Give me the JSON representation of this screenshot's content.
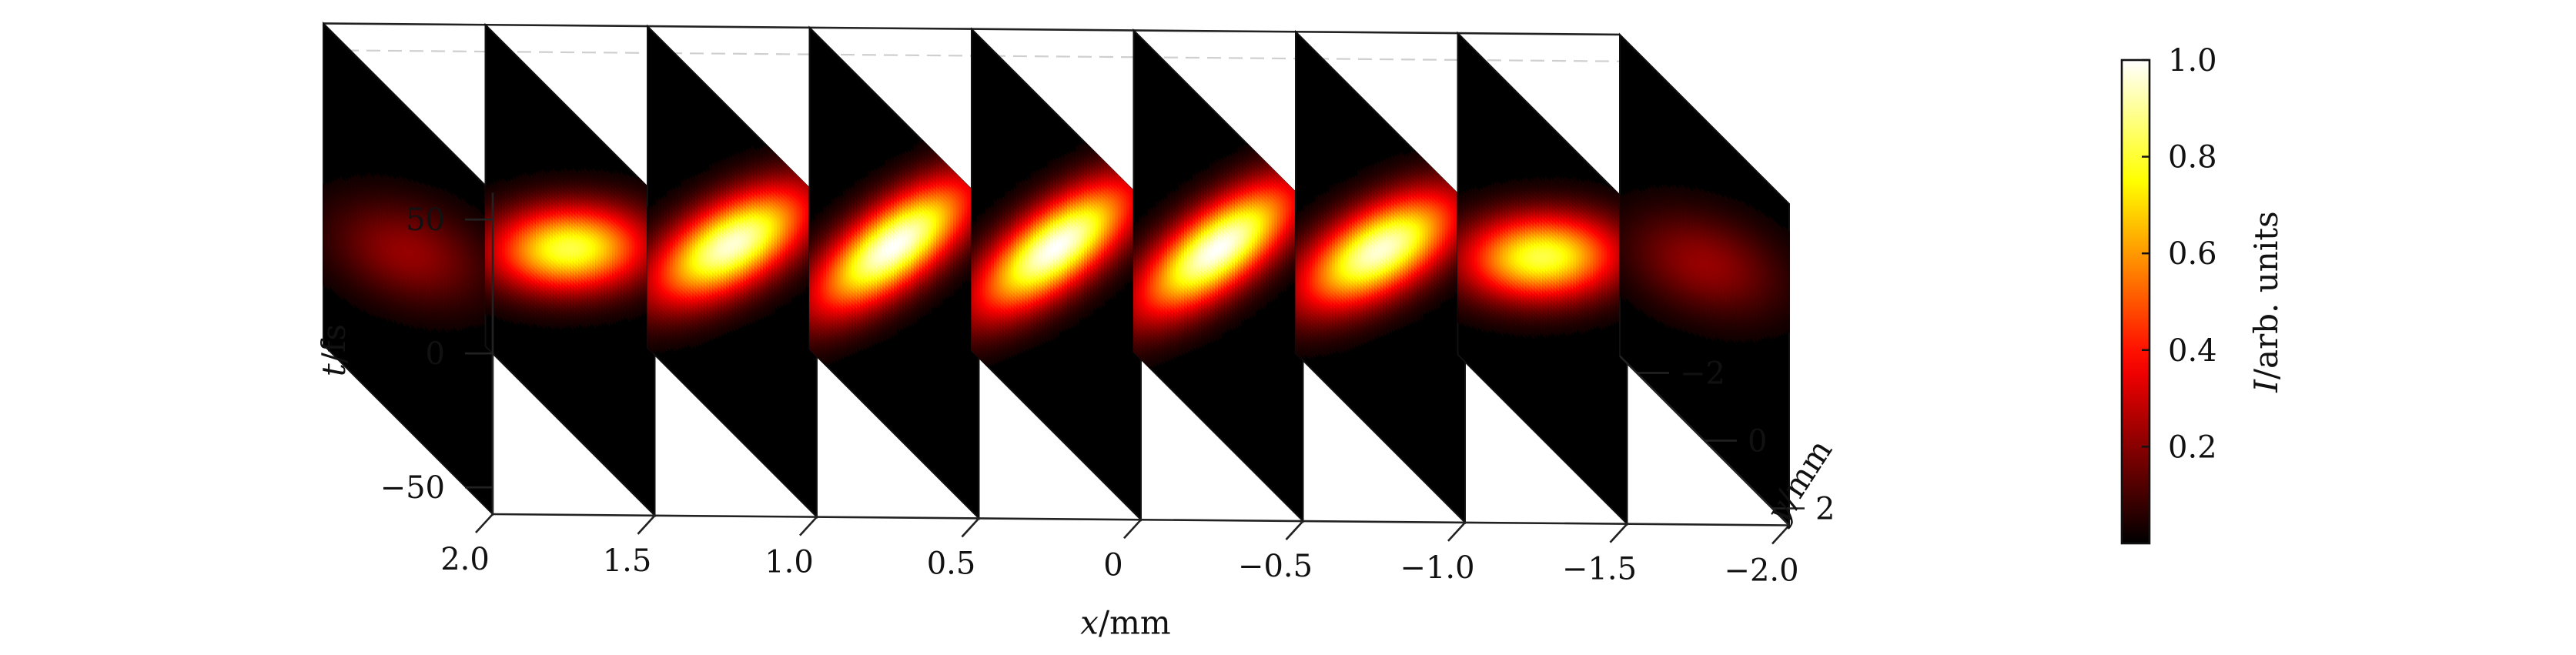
{
  "chart_data": {
    "type": "heatmap",
    "title": "",
    "xlabel_var": "x",
    "xlabel_unit": "/mm",
    "ylabel_var": "y",
    "ylabel_unit": "/mm",
    "tlabel_var": "t",
    "tlabel_unit": "/fs",
    "x_ticks": [
      "2.0",
      "1.5",
      "1.0",
      "0.5",
      "0",
      "−0.5",
      "−1.0",
      "−1.5",
      "−2.0"
    ],
    "x_values": [
      2.0,
      1.5,
      1.0,
      0.5,
      0.0,
      -0.5,
      -1.0,
      -1.5,
      -2.0
    ],
    "y_ticks": [
      "−2",
      "0",
      "2"
    ],
    "y_values": [
      -2,
      0,
      2
    ],
    "t_ticks": [
      "50",
      "0",
      "−50"
    ],
    "t_values": [
      50,
      0,
      -50
    ],
    "xlim": [
      2.0,
      -2.0
    ],
    "ylim": [
      -2.5,
      2.5
    ],
    "tlim": [
      -60,
      60
    ],
    "slices": [
      {
        "x": 2.0,
        "peak": 0.22,
        "t_center": 6,
        "t_width": 13,
        "slope": 10,
        "y_width": 0.35
      },
      {
        "x": 1.5,
        "peak": 0.82,
        "t_center": 8,
        "t_width": 11,
        "slope": 13,
        "y_width": 0.4
      },
      {
        "x": 1.0,
        "peak": 0.96,
        "t_center": 10,
        "t_width": 12,
        "slope": 18,
        "y_width": 0.5
      },
      {
        "x": 0.5,
        "peak": 1.0,
        "t_center": 10,
        "t_width": 12,
        "slope": 20,
        "y_width": 0.55
      },
      {
        "x": 0.0,
        "peak": 1.0,
        "t_center": 10,
        "t_width": 12,
        "slope": 20,
        "y_width": 0.55
      },
      {
        "x": -0.5,
        "peak": 1.0,
        "t_center": 10,
        "t_width": 12,
        "slope": 20,
        "y_width": 0.55
      },
      {
        "x": -1.0,
        "peak": 0.96,
        "t_center": 10,
        "t_width": 12,
        "slope": 18,
        "y_width": 0.5
      },
      {
        "x": -1.5,
        "peak": 0.82,
        "t_center": 8,
        "t_width": 11,
        "slope": 13,
        "y_width": 0.4
      },
      {
        "x": -2.0,
        "peak": 0.22,
        "t_center": 6,
        "t_width": 13,
        "slope": 10,
        "y_width": 0.35
      }
    ],
    "colorbar": {
      "colormap": "hot",
      "label_var": "I",
      "label_unit": "/arb. units",
      "ticks": [
        "1.0",
        "0.8",
        "0.6",
        "0.4",
        "0.2"
      ],
      "values": [
        1.0,
        0.8,
        0.6,
        0.4,
        0.2
      ],
      "range": [
        0,
        1
      ]
    },
    "grid": "dashed-gray",
    "legend": "none"
  }
}
